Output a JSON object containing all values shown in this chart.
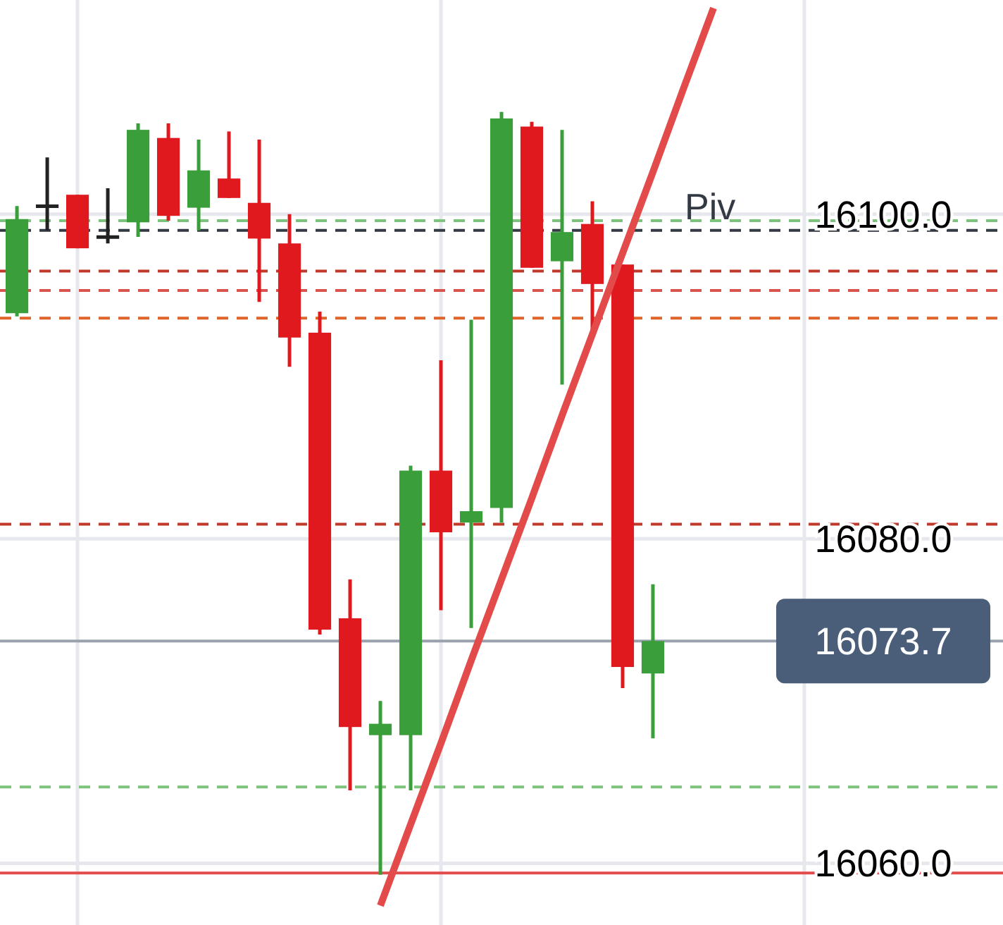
{
  "chart_data": {
    "type": "candlestick",
    "categories": [
      null,
      null,
      null,
      null,
      null,
      null,
      null,
      null,
      null,
      null,
      null,
      null,
      null,
      null,
      null,
      null,
      null,
      null,
      null,
      null,
      null,
      null,
      null,
      null,
      null,
      null,
      null,
      null,
      null,
      null,
      null,
      null,
      null
    ],
    "ohlc": [
      [
        16093.9,
        16100.5,
        16093.7,
        16099.7
      ],
      [
        16100.6,
        16103.5,
        16099.0,
        16100.6
      ],
      [
        16101.2,
        16101.2,
        16097.9,
        16097.9
      ],
      [
        16098.7,
        16101.6,
        16098.2,
        16098.7
      ],
      [
        16099.5,
        16105.6,
        16098.6,
        16105.2
      ],
      [
        16104.7,
        16105.6,
        16099.6,
        16099.9
      ],
      [
        16100.4,
        16104.6,
        16099.0,
        16102.7
      ],
      [
        16102.2,
        16105.1,
        16101.0,
        16101.0
      ],
      [
        16100.7,
        16104.6,
        16094.6,
        16098.5
      ],
      [
        16098.2,
        16100.0,
        16090.6,
        16092.4
      ],
      [
        16092.7,
        16094.0,
        16074.1,
        16074.4
      ],
      [
        16075.1,
        16077.5,
        16064.5,
        16068.4
      ],
      [
        16067.9,
        16070.0,
        16059.3,
        16068.6
      ],
      [
        16067.9,
        16084.5,
        16064.5,
        16084.2
      ],
      [
        16084.2,
        16091.0,
        16075.6,
        16080.4
      ],
      [
        16081.0,
        16093.5,
        16074.5,
        16081.7
      ],
      [
        16081.9,
        16106.3,
        16081.0,
        16105.9
      ],
      [
        16105.4,
        16105.7,
        16096.7,
        16096.7
      ],
      [
        16097.1,
        16105.2,
        16089.5,
        16098.9
      ],
      [
        16099.4,
        16100.8,
        16092.8,
        16095.7
      ],
      [
        16096.9,
        16096.9,
        16070.8,
        16072.1
      ],
      [
        16071.7,
        16077.2,
        16067.7,
        16073.7
      ],
      null,
      null,
      null,
      null,
      null,
      null,
      null,
      null,
      null,
      null,
      null
    ],
    "colors": [
      "#3a9e3a",
      "#222222",
      "#e0191f",
      "#222222",
      "#3a9e3a",
      "#e0191f",
      "#3a9e3a",
      "#e0191f",
      "#e0191f",
      "#e0191f",
      "#e0191f",
      "#e0191f",
      "#3a9e3a",
      "#3a9e3a",
      "#e0191f",
      "#3a9e3a",
      "#3a9e3a",
      "#e0191f",
      "#3a9e3a",
      "#e0191f",
      "#e0191f",
      "#3a9e3a",
      null,
      null,
      null,
      null,
      null,
      null,
      null,
      null,
      null,
      null,
      null
    ],
    "series": [
      {
        "type": "line",
        "color": "#e34a4a",
        "values": [
          null,
          null,
          null,
          null,
          null,
          null,
          null,
          null,
          null,
          null,
          null,
          null,
          16057.4,
          16062.4,
          16067.4,
          16072.5,
          16077.5,
          16082.5,
          16087.6,
          16092.6,
          16097.6,
          16102.6,
          16107.7,
          16112.7,
          null,
          null,
          null,
          null,
          null,
          null,
          null,
          null,
          null
        ]
      }
    ],
    "ylim": [
      16056.2,
      16113.2
    ],
    "yticks": [
      {
        "value": 16060,
        "label": "16060.0"
      },
      {
        "value": 16080,
        "label": "16080.0"
      },
      {
        "value": 16100,
        "label": "16100.0"
      }
    ],
    "grid": true,
    "tick_labels": "y",
    "ref_lines": [
      {
        "axis": "y",
        "value": 16099.6,
        "color": "#7cc47c",
        "line_style": "dashed"
      },
      {
        "axis": "y",
        "value": 16099.0,
        "label": "Piv",
        "color": "#333a44",
        "line_style": "dashed"
      },
      {
        "axis": "y",
        "value": 16096.5,
        "color": "#c0392b",
        "line_style": "dashed"
      },
      {
        "axis": "y",
        "value": 16095.3,
        "color": "#d9534f",
        "line_style": "dashed"
      },
      {
        "axis": "y",
        "value": 16093.6,
        "color": "#e0632a",
        "line_style": "dashed"
      },
      {
        "axis": "y",
        "value": 16080.9,
        "color": "#c0392b",
        "line_style": "dashed"
      },
      {
        "axis": "y",
        "value": 16073.7,
        "label": "16073.7",
        "color": "#9aa3ad",
        "line_style": "solid"
      },
      {
        "axis": "y",
        "value": 16064.7,
        "color": "#7cc47c",
        "line_style": "dashed"
      },
      {
        "axis": "y",
        "value": 16059.4,
        "color": "#e34a4a",
        "line_style": "solid"
      }
    ]
  }
}
